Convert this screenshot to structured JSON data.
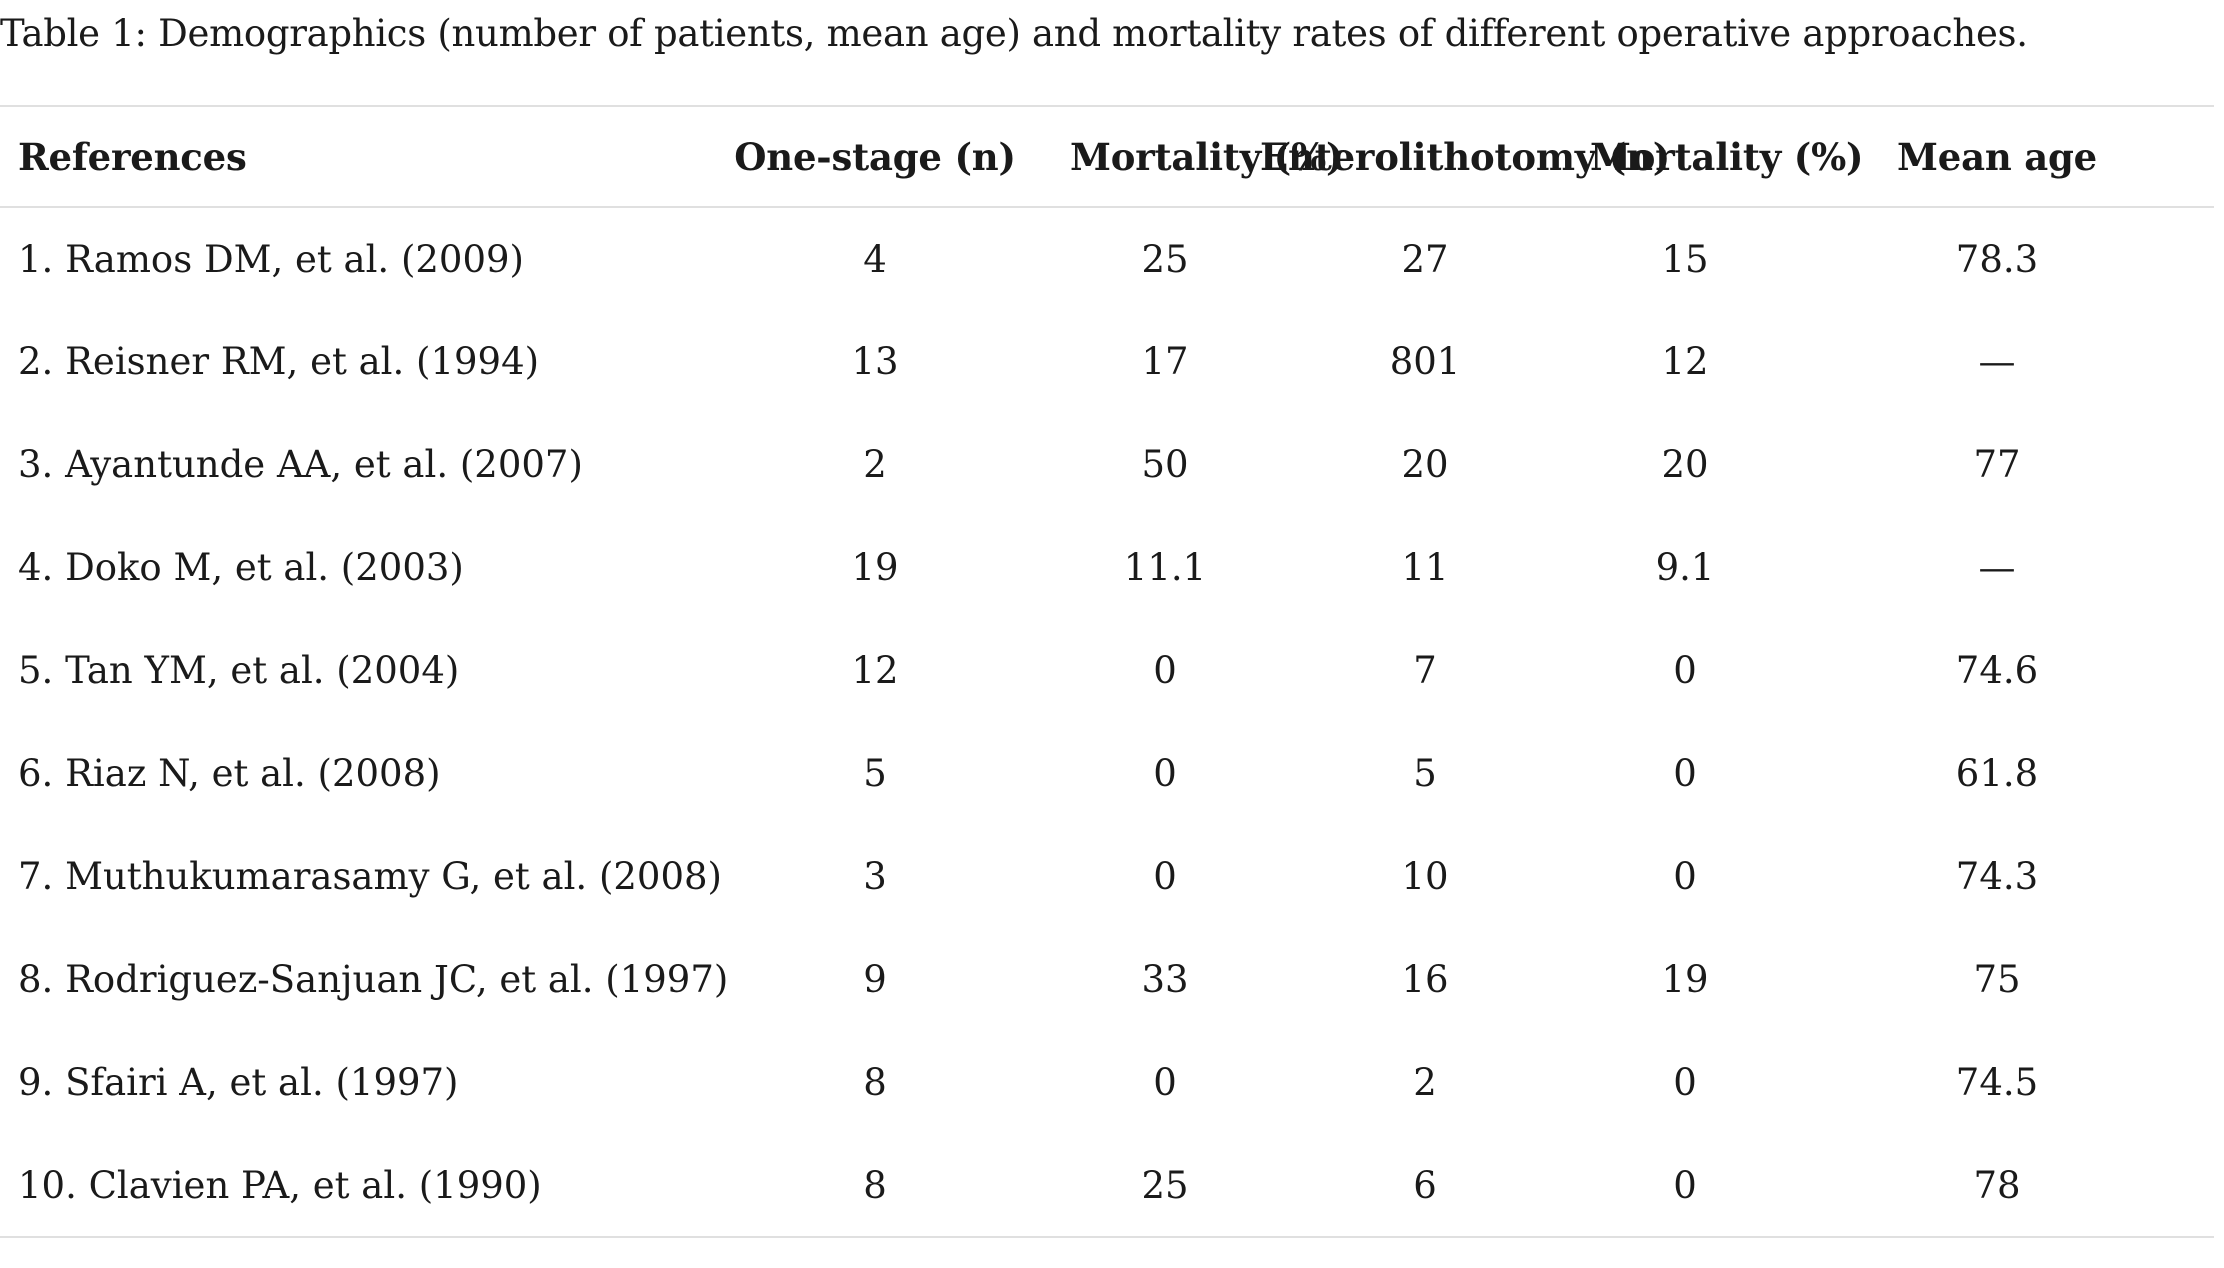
{
  "caption": "Table 1: Demographics (number of patients, mean age) and mortality rates of different operative approaches.",
  "table": {
    "headers": {
      "references": "References",
      "one_stage": "One-stage (n)",
      "mortality_1": "Mortality (%)",
      "enterolithotomy": "Enterolithotomy (n)",
      "mortality_2": "Mortality (%)",
      "mean_age": "Mean age"
    },
    "rows": [
      {
        "ref": "1. Ramos DM, et al. (2009)",
        "one_stage": "4",
        "mortality_1": "25",
        "enterolithotomy": "27",
        "mortality_2": "15",
        "mean_age": "78.3"
      },
      {
        "ref": "2. Reisner RM, et al. (1994)",
        "one_stage": "13",
        "mortality_1": "17",
        "enterolithotomy": "801",
        "mortality_2": "12",
        "mean_age": "—"
      },
      {
        "ref": "3. Ayantunde AA, et al. (2007)",
        "one_stage": "2",
        "mortality_1": "50",
        "enterolithotomy": "20",
        "mortality_2": "20",
        "mean_age": "77"
      },
      {
        "ref": "4. Doko M, et al. (2003)",
        "one_stage": "19",
        "mortality_1": "11.1",
        "enterolithotomy": "11",
        "mortality_2": "9.1",
        "mean_age": "—"
      },
      {
        "ref": "5. Tan YM, et al. (2004)",
        "one_stage": "12",
        "mortality_1": "0",
        "enterolithotomy": "7",
        "mortality_2": "0",
        "mean_age": "74.6"
      },
      {
        "ref": "6. Riaz N, et al. (2008)",
        "one_stage": "5",
        "mortality_1": "0",
        "enterolithotomy": "5",
        "mortality_2": "0",
        "mean_age": "61.8"
      },
      {
        "ref": "7. Muthukumarasamy G, et al. (2008)",
        "one_stage": "3",
        "mortality_1": "0",
        "enterolithotomy": "10",
        "mortality_2": "0",
        "mean_age": "74.3"
      },
      {
        "ref": "8. Rodriguez-Sanjuan JC, et al. (1997)",
        "one_stage": "9",
        "mortality_1": "33",
        "enterolithotomy": "16",
        "mortality_2": "19",
        "mean_age": "75"
      },
      {
        "ref": "9. Sfairi A, et al. (1997)",
        "one_stage": "8",
        "mortality_1": "0",
        "enterolithotomy": "2",
        "mortality_2": "0",
        "mean_age": "74.5"
      },
      {
        "ref": "10. Clavien PA, et al. (1990)",
        "one_stage": "8",
        "mortality_1": "25",
        "enterolithotomy": "6",
        "mortality_2": "0",
        "mean_age": "78"
      }
    ]
  }
}
